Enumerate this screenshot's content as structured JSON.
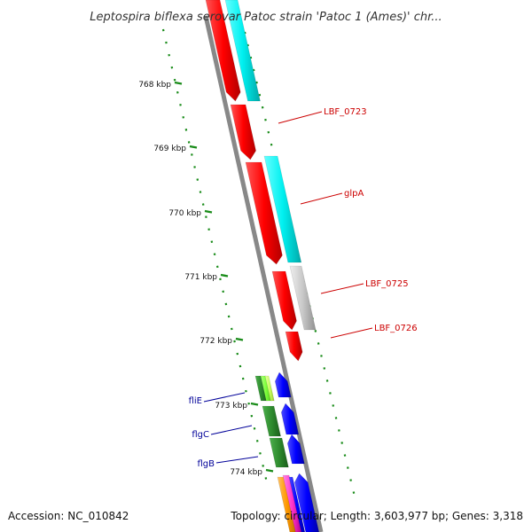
{
  "title": "Leptospira biflexa serovar Patoc strain 'Patoc 1 (Ames)' chr...",
  "footer": {
    "accession": "Accession: NC_010842",
    "topology": "Topology: circular; Length: 3,603,977 bp; Genes: 3,318"
  },
  "colors": {
    "red": "#ff0000",
    "cyan": "#00e5e5",
    "grey": "#c8c8c8",
    "blue": "#0000ff",
    "dark_green": "#2e8b2e",
    "light_green": "#7cff3a",
    "yellow_green": "#c8ff60",
    "orange": "#ff9900",
    "magenta": "#ff33cc",
    "backbone": "#888888",
    "tick_green": "#1a8c1a",
    "red_label": "#cc0000",
    "blue_label": "#000099"
  },
  "scale": {
    "unit": "kbp",
    "ticks": [
      {
        "label": "768 kbp"
      },
      {
        "label": "769 kbp"
      },
      {
        "label": "770 kbp"
      },
      {
        "label": "771 kbp"
      },
      {
        "label": "772 kbp"
      },
      {
        "label": "773 kbp"
      },
      {
        "label": "774 kbp"
      }
    ]
  },
  "gene_labels": [
    {
      "name": "LBF_0723",
      "color": "red"
    },
    {
      "name": "glpA",
      "color": "red"
    },
    {
      "name": "LBF_0725",
      "color": "red"
    },
    {
      "name": "LBF_0726",
      "color": "red"
    },
    {
      "name": "fliE",
      "color": "blue"
    },
    {
      "name": "flgC",
      "color": "blue"
    },
    {
      "name": "flgB",
      "color": "blue"
    }
  ]
}
